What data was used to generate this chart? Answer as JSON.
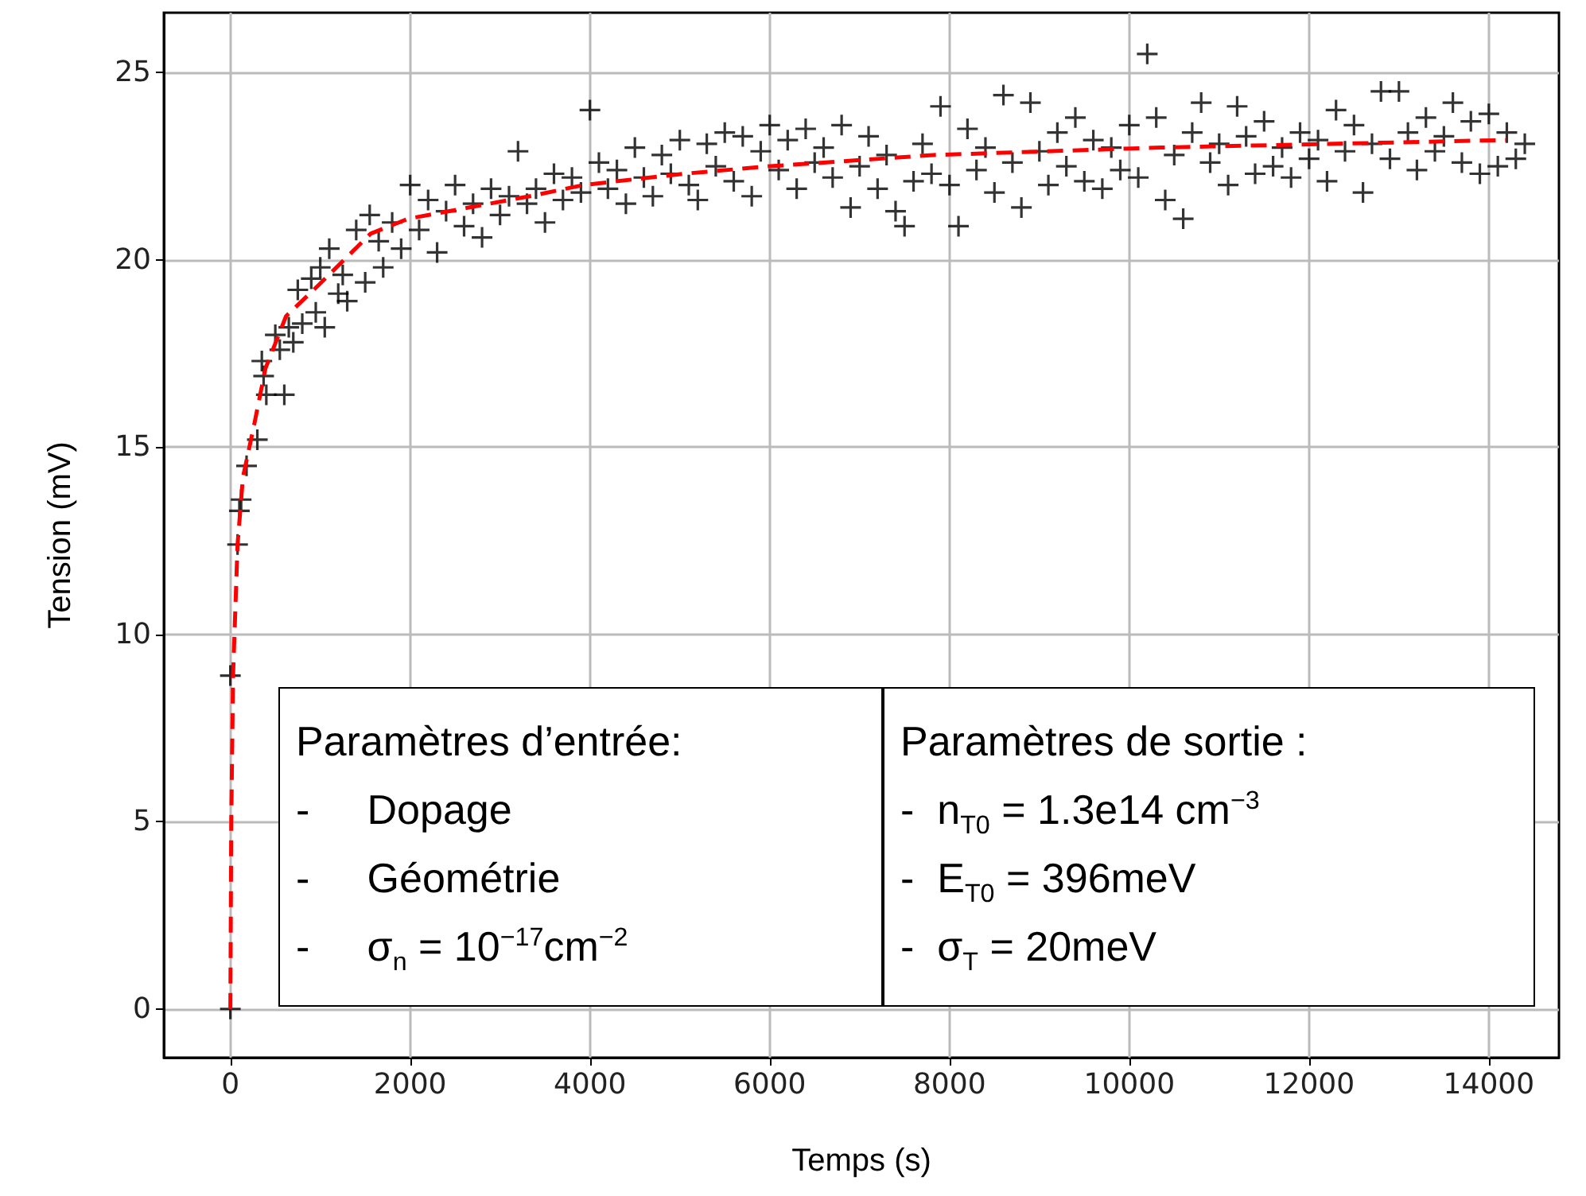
{
  "chart_data": {
    "type": "scatter",
    "xlabel": "Temps (s)",
    "ylabel": "Tension (mV)",
    "xlim": [
      -740,
      14780
    ],
    "xticks": [
      0,
      2000,
      4000,
      6000,
      8000,
      10000,
      12000,
      14000
    ],
    "ylim": [
      -1.3,
      26.6
    ],
    "yticks": [
      0,
      5,
      10,
      15,
      20,
      25
    ],
    "grid": true,
    "series": [
      {
        "marker": "cross",
        "color": "#000000",
        "x": [
          0,
          0,
          80,
          100,
          120,
          180,
          300,
          350,
          370,
          400,
          500,
          550,
          600,
          650,
          700,
          750,
          800,
          900,
          950,
          1000,
          1050,
          1100,
          1200,
          1250,
          1300,
          1400,
          1500,
          1550,
          1650,
          1700,
          1800,
          1900,
          2000,
          2100,
          2200,
          2300,
          2400,
          2500,
          2600,
          2700,
          2800,
          2900,
          3000,
          3100,
          3200,
          3300,
          3400,
          3500,
          3600,
          3700,
          3800,
          3900,
          4000,
          4100,
          4200,
          4300,
          4400,
          4500,
          4600,
          4700,
          4800,
          4900,
          5000,
          5100,
          5200,
          5300,
          5400,
          5500,
          5600,
          5700,
          5800,
          5900,
          6000,
          6100,
          6200,
          6300,
          6400,
          6500,
          6600,
          6700,
          6800,
          6900,
          7000,
          7100,
          7200,
          7300,
          7400,
          7500,
          7600,
          7700,
          7800,
          7900,
          8000,
          8100,
          8200,
          8300,
          8400,
          8500,
          8600,
          8700,
          8800,
          8900,
          9000,
          9100,
          9200,
          9300,
          9400,
          9500,
          9600,
          9700,
          9800,
          9900,
          10000,
          10100,
          10200,
          10300,
          10400,
          10500,
          10600,
          10700,
          10800,
          10900,
          11000,
          11100,
          11200,
          11300,
          11400,
          11500,
          11600,
          11700,
          11800,
          11900,
          12000,
          12100,
          12200,
          12300,
          12400,
          12500,
          12600,
          12700,
          12800,
          12900,
          13000,
          13100,
          13200,
          13300,
          13400,
          13500,
          13600,
          13700,
          13800,
          13900,
          14000,
          14100,
          14200,
          14300,
          14400
        ],
        "values": [
          0,
          8.9,
          12.4,
          13.3,
          13.6,
          14.5,
          15.2,
          17.3,
          16.9,
          16.4,
          18.0,
          17.6,
          16.4,
          18.2,
          17.8,
          19.2,
          18.3,
          19.5,
          18.6,
          19.8,
          18.2,
          20.3,
          19.1,
          19.6,
          18.9,
          20.8,
          19.4,
          21.2,
          20.5,
          19.8,
          21.0,
          20.3,
          22.0,
          20.8,
          21.6,
          20.2,
          21.3,
          22.0,
          20.9,
          21.5,
          20.6,
          21.9,
          21.2,
          21.7,
          22.9,
          21.5,
          21.9,
          21.0,
          22.3,
          21.6,
          22.2,
          21.8,
          24.0,
          22.6,
          21.9,
          22.4,
          21.5,
          23.0,
          22.2,
          21.7,
          22.8,
          22.3,
          23.2,
          22.0,
          21.6,
          23.1,
          22.5,
          23.4,
          22.1,
          23.3,
          21.7,
          22.9,
          23.6,
          22.4,
          23.2,
          21.9,
          23.5,
          22.6,
          23.0,
          22.2,
          23.6,
          21.4,
          22.5,
          23.3,
          21.9,
          22.8,
          21.3,
          20.9,
          22.1,
          23.1,
          22.3,
          24.1,
          22.0,
          20.9,
          23.5,
          22.4,
          23.0,
          21.8,
          24.4,
          22.6,
          21.4,
          24.2,
          22.9,
          22.0,
          23.4,
          22.5,
          23.8,
          22.1,
          23.2,
          21.9,
          23.0,
          22.4,
          23.6,
          22.2,
          25.5,
          23.8,
          21.6,
          22.8,
          21.1,
          23.4,
          24.2,
          22.6,
          23.1,
          22.0,
          24.1,
          23.3,
          22.3,
          23.7,
          22.5,
          23.0,
          22.2,
          23.4,
          22.7,
          23.2,
          22.1,
          24.0,
          22.9,
          23.6,
          21.8,
          23.1,
          24.5,
          22.7,
          24.5,
          23.4,
          22.4,
          23.8,
          22.9,
          23.3,
          24.2,
          22.6,
          23.7,
          22.3,
          23.9,
          22.5,
          23.4,
          22.7,
          23.1
        ]
      },
      {
        "type": "line",
        "marker": "none",
        "color": "#ff0000",
        "line_style": "dashed",
        "x": [
          0,
          10,
          30,
          80,
          140,
          265,
          390,
          620,
          970,
          1560,
          1980,
          3330,
          3930,
          5040,
          6000,
          7820,
          10350,
          14190
        ],
        "values": [
          0,
          5,
          8.9,
          12.4,
          14.2,
          15.6,
          17.1,
          18.5,
          19.3,
          20.7,
          21.1,
          21.7,
          22.0,
          22.3,
          22.5,
          22.8,
          23.0,
          23.2
        ]
      }
    ],
    "annotations": [
      "Paramètres d’entrée:\n-     Dopage\n-     Géométrie\n-     σ$_{n}$ = 10$^{−17}$cm$^{−2}$",
      "Paramètres de sortie :\n-  n$_{T0}$ = 1.3e14 cm$^{−3}$\n-  E$_{T0}$ = 396meV\n-  σ$_{T}$ = 20meV"
    ]
  }
}
